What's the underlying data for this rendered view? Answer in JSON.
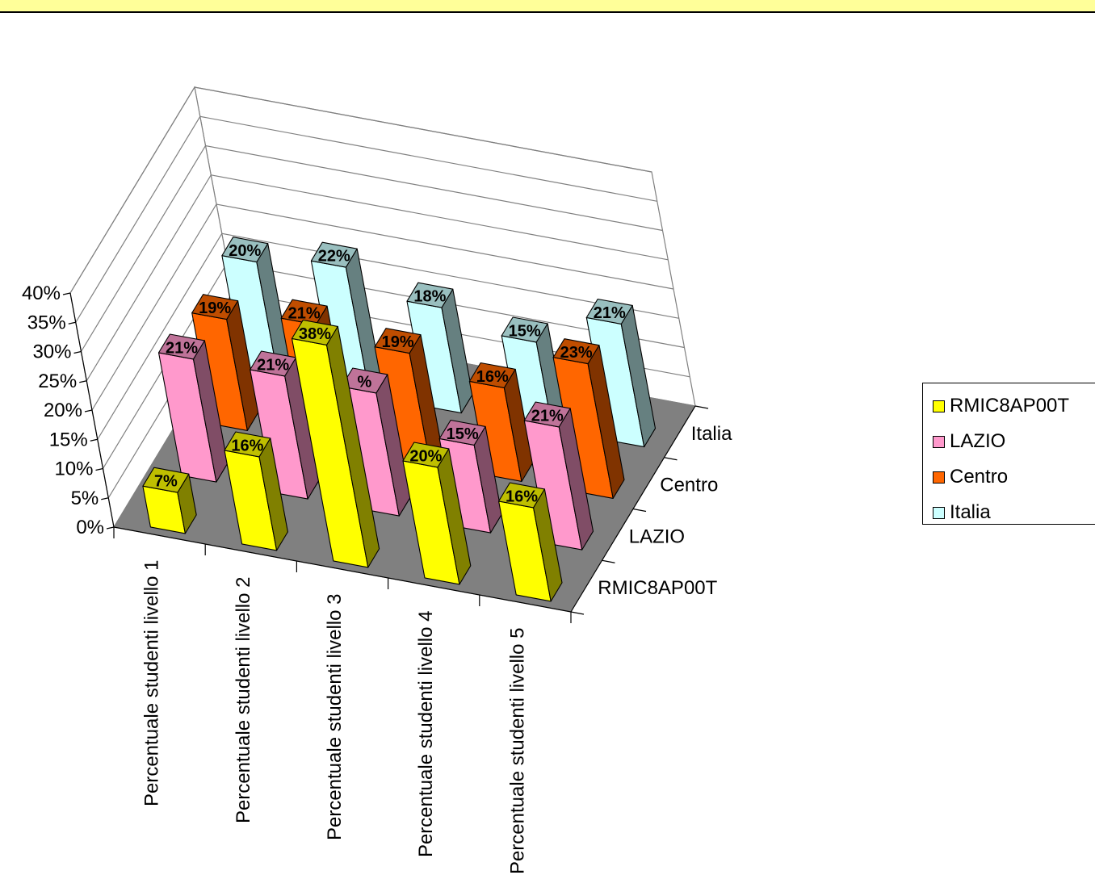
{
  "chart_data": {
    "type": "bar",
    "style": "3d-column",
    "title": "",
    "categories": [
      "Percentuale studenti livello 1",
      "Percentuale studenti livello 2",
      "Percentuale studenti livello 3",
      "Percentuale studenti livello 4",
      "Percentuale studenti livello 5"
    ],
    "series": [
      {
        "name": "RMIC8AP00T",
        "values": [
          7,
          16,
          38,
          20,
          16
        ],
        "labels": [
          "7%",
          "16%",
          "38%",
          "20%",
          "16%"
        ],
        "color": "#ffff00"
      },
      {
        "name": "LAZIO",
        "values": [
          21,
          21,
          21,
          15,
          21
        ],
        "labels": [
          "21%",
          "21%",
          "%",
          "15%",
          "21%"
        ],
        "color": "#ff99cc"
      },
      {
        "name": "Centro",
        "values": [
          19,
          21,
          19,
          16,
          23
        ],
        "labels": [
          "19%",
          "21%",
          "19%",
          "16%",
          "23%"
        ],
        "color": "#ff6600"
      },
      {
        "name": "Italia",
        "values": [
          20,
          22,
          18,
          15,
          21
        ],
        "labels": [
          "20%",
          "22%",
          "18%",
          "15%",
          "21%"
        ],
        "color": "#ccffff"
      }
    ],
    "y_ticks": [
      "0%",
      "5%",
      "10%",
      "15%",
      "20%",
      "25%",
      "30%",
      "35%",
      "40%"
    ],
    "ylim": [
      0,
      40
    ],
    "depth_labels": [
      "RMIC8AP00T",
      "LAZIO",
      "Centro",
      "Italia"
    ],
    "grid": true,
    "floor_color": "#808080",
    "legend_position": "right"
  }
}
